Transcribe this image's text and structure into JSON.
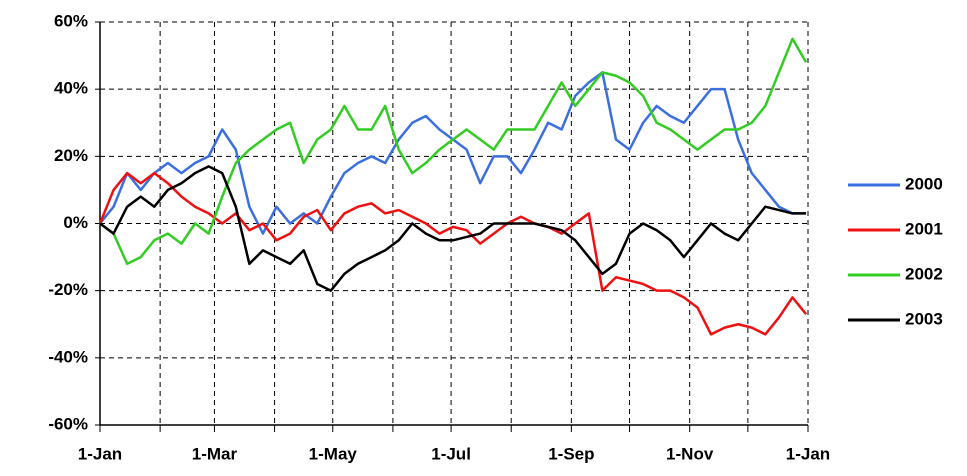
{
  "chart_data": {
    "type": "line",
    "x": [
      0,
      7,
      14,
      21,
      28,
      35,
      42,
      49,
      56,
      63,
      70,
      77,
      84,
      91,
      98,
      105,
      112,
      119,
      126,
      133,
      140,
      147,
      154,
      161,
      168,
      175,
      182,
      189,
      196,
      203,
      210,
      217,
      224,
      231,
      238,
      245,
      252,
      259,
      266,
      273,
      280,
      287,
      294,
      301,
      308,
      315,
      322,
      329,
      336,
      343,
      350,
      357,
      364
    ],
    "xlim": [
      0,
      365
    ],
    "xticks": [
      {
        "value": 0,
        "label": "1-Jan"
      },
      {
        "value": 59,
        "label": "1-Mar"
      },
      {
        "value": 120,
        "label": "1-May"
      },
      {
        "value": 181,
        "label": "1-Jul"
      },
      {
        "value": 243,
        "label": "1-Sep"
      },
      {
        "value": 304,
        "label": "1-Nov"
      },
      {
        "value": 365,
        "label": "1-Jan"
      }
    ],
    "x_minor_grid": [
      31,
      90,
      151,
      212,
      273,
      334
    ],
    "ylim": [
      -60,
      60
    ],
    "yticks": [
      {
        "value": -60,
        "label": "-60%"
      },
      {
        "value": -40,
        "label": "-40%"
      },
      {
        "value": -20,
        "label": "-20%"
      },
      {
        "value": 0,
        "label": "0%"
      },
      {
        "value": 20,
        "label": "20%"
      },
      {
        "value": 40,
        "label": "40%"
      },
      {
        "value": 60,
        "label": "60%"
      }
    ],
    "grid": true,
    "legend": "right",
    "series": [
      {
        "name": "2000",
        "color": "#3b6fe0",
        "values": [
          0,
          5,
          15,
          10,
          15,
          18,
          15,
          18,
          20,
          28,
          22,
          5,
          -3,
          5,
          0,
          3,
          0,
          8,
          15,
          18,
          20,
          18,
          25,
          30,
          32,
          28,
          25,
          22,
          12,
          20,
          20,
          15,
          22,
          30,
          28,
          38,
          42,
          45,
          25,
          22,
          30,
          35,
          32,
          30,
          35,
          40,
          40,
          25,
          15,
          10,
          5,
          3,
          3
        ]
      },
      {
        "name": "2001",
        "color": "#ee1111",
        "values": [
          0,
          10,
          15,
          12,
          15,
          12,
          8,
          5,
          3,
          0,
          3,
          -2,
          0,
          -5,
          -3,
          2,
          4,
          -2,
          3,
          5,
          6,
          3,
          4,
          2,
          0,
          -3,
          -1,
          -2,
          -6,
          -3,
          0,
          2,
          0,
          -1,
          -3,
          0,
          3,
          -20,
          -16,
          -17,
          -18,
          -20,
          -20,
          -22,
          -25,
          -33,
          -31,
          -30,
          -31,
          -33,
          -28,
          -22,
          -27
        ]
      },
      {
        "name": "2002",
        "color": "#33cc22",
        "values": [
          0,
          -3,
          -12,
          -10,
          -5,
          -3,
          -6,
          0,
          -3,
          8,
          18,
          22,
          25,
          28,
          30,
          18,
          25,
          28,
          35,
          28,
          28,
          35,
          22,
          15,
          18,
          22,
          25,
          28,
          25,
          22,
          28,
          28,
          28,
          35,
          42,
          35,
          40,
          45,
          44,
          42,
          38,
          30,
          28,
          25,
          22,
          25,
          28,
          28,
          30,
          35,
          45,
          55,
          48
        ]
      },
      {
        "name": "2003",
        "color": "#000000",
        "values": [
          0,
          -3,
          5,
          8,
          5,
          10,
          12,
          15,
          17,
          15,
          5,
          -12,
          -8,
          -10,
          -12,
          -8,
          -18,
          -20,
          -15,
          -12,
          -10,
          -8,
          -5,
          0,
          -3,
          -5,
          -5,
          -4,
          -3,
          0,
          0,
          0,
          0,
          -1,
          -2,
          -5,
          -10,
          -15,
          -12,
          -3,
          0,
          -2,
          -5,
          -10,
          -5,
          0,
          -3,
          -5,
          0,
          5,
          4,
          3,
          3
        ]
      }
    ]
  }
}
